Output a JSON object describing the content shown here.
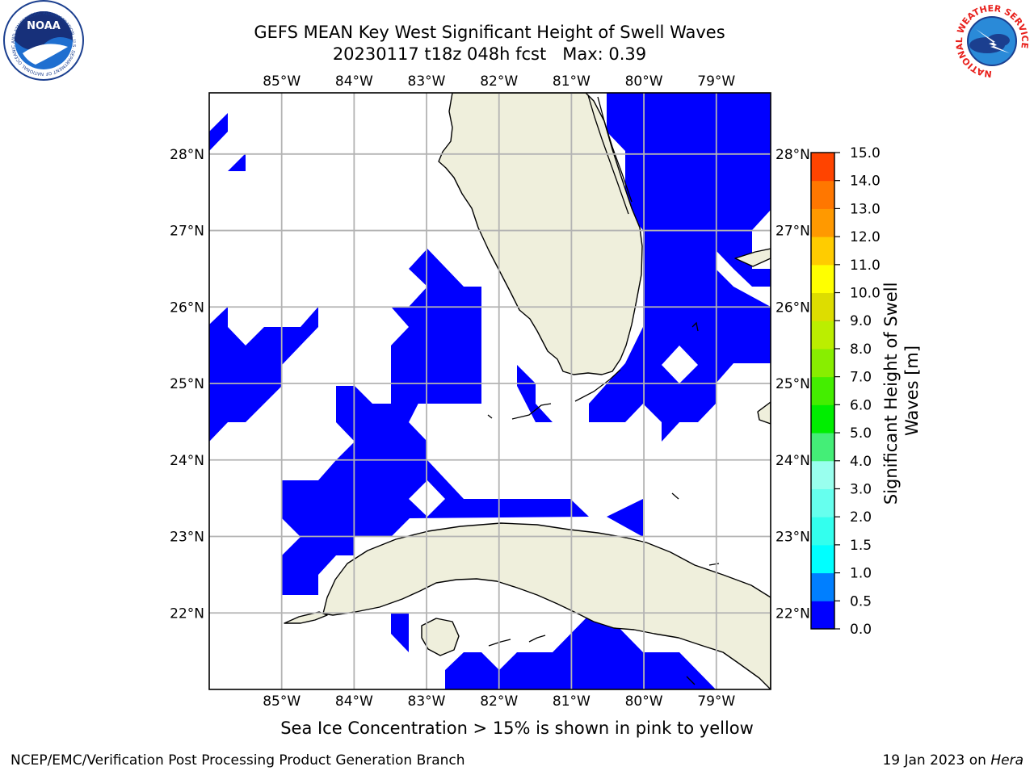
{
  "title": {
    "line1": "GEFS MEAN Key West Significant Height of Swell Waves",
    "line2": "20230117 t18z 048h fcst   Max: 0.39"
  },
  "logos": {
    "left": {
      "icon": "noaa-logo-icon",
      "text": "NOAA",
      "ring_text": "NATIONAL OCEANIC AND ATMOSPHERIC ADMINISTRATION · U.S. DEPARTMENT OF COMMERCE"
    },
    "right": {
      "icon": "nws-logo-icon",
      "ring_text": "NATIONAL WEATHER SERVICE"
    }
  },
  "map": {
    "lon_range": [
      -86.0,
      -78.25
    ],
    "lat_range": [
      21.0,
      28.8
    ],
    "gridlines": true,
    "lon_labels": [
      "85°W",
      "84°W",
      "83°W",
      "82°W",
      "81°W",
      "80°W",
      "79°W"
    ],
    "lon_values": [
      -85,
      -84,
      -83,
      -82,
      -81,
      -80,
      -79
    ],
    "lat_labels": [
      "22°N",
      "23°N",
      "24°N",
      "25°N",
      "26°N",
      "27°N",
      "28°N"
    ],
    "lat_values": [
      22,
      23,
      24,
      25,
      26,
      27,
      28
    ],
    "colors": {
      "land": "#efefdc",
      "ocean": "#ffffff",
      "swell_0_0.5": "#0000ff",
      "grid": "#b3b3b3",
      "coast": "#000000"
    }
  },
  "colorbar": {
    "label": "Significant Height of Swell Waves [m]",
    "ticks": [
      "0.0",
      "0.5",
      "1.0",
      "1.5",
      "2.0",
      "3.0",
      "4.0",
      "5.0",
      "6.0",
      "7.0",
      "8.0",
      "9.0",
      "10.0",
      "11.0",
      "12.0",
      "13.0",
      "14.0",
      "15.0"
    ],
    "colors": [
      "#0000ff",
      "#007fff",
      "#00ffff",
      "#33ffee",
      "#66ffee",
      "#99ffee",
      "#44ee77",
      "#00ee00",
      "#44ee00",
      "#88ee00",
      "#bbee00",
      "#dddd00",
      "#ffff00",
      "#ffcc00",
      "#ff9900",
      "#ff7700",
      "#ff4400",
      "#ff2200",
      "#ff0000"
    ]
  },
  "note": "Sea Ice Concentration > 15% is shown in pink to yellow",
  "footer": {
    "left": "NCEP/EMC/Verification Post Processing Product Generation Branch",
    "date": "19 Jan 2023 on",
    "host": "Hera"
  }
}
